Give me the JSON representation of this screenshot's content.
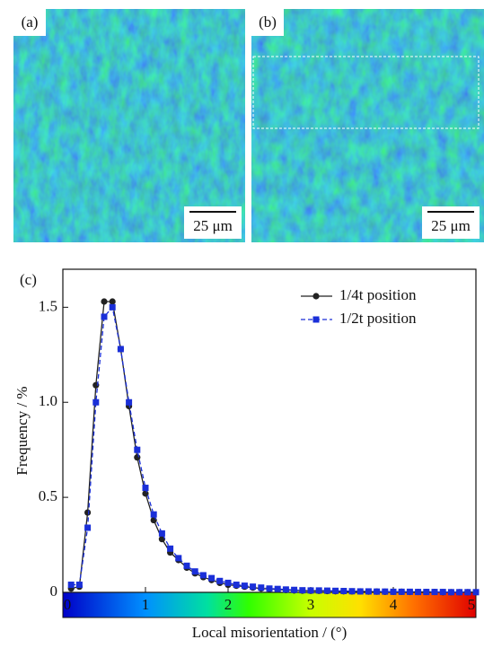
{
  "images": [
    {
      "label": "(a)",
      "scale_bar": "25 μm"
    },
    {
      "label": "(b)",
      "scale_bar": "25 μm"
    }
  ],
  "chart_data": {
    "type": "line",
    "panel_label": "(c)",
    "x_label": "Local misorientation / (°)",
    "y_label": "Frequency / %",
    "x": [
      0.1,
      0.2,
      0.3,
      0.4,
      0.5,
      0.6,
      0.7,
      0.8,
      0.9,
      1.0,
      1.1,
      1.2,
      1.3,
      1.4,
      1.5,
      1.6,
      1.7,
      1.8,
      1.9,
      2.0,
      2.1,
      2.2,
      2.3,
      2.4,
      2.5,
      2.6,
      2.7,
      2.8,
      2.9,
      3.0,
      3.1,
      3.2,
      3.3,
      3.4,
      3.5,
      3.6,
      3.7,
      3.8,
      3.9,
      4.0,
      4.1,
      4.2,
      4.3,
      4.4,
      4.5,
      4.6,
      4.7,
      4.8,
      4.9,
      5.0
    ],
    "series": [
      {
        "name": "1/4t position",
        "color": "#222222",
        "marker": "circle",
        "line_style": "solid",
        "values": [
          0.02,
          0.03,
          0.42,
          1.09,
          1.53,
          1.53,
          1.28,
          0.98,
          0.71,
          0.52,
          0.38,
          0.28,
          0.21,
          0.17,
          0.13,
          0.1,
          0.08,
          0.065,
          0.05,
          0.04,
          0.035,
          0.03,
          0.025,
          0.02,
          0.018,
          0.015,
          0.012,
          0.01,
          0.009,
          0.008,
          0.008,
          0.007,
          0.006,
          0.006,
          0.005,
          0.005,
          0.004,
          0.004,
          0.003,
          0.003,
          0.003,
          0.002,
          0.002,
          0.002,
          0.002,
          0.001,
          0.001,
          0.001,
          0.001,
          0.001
        ]
      },
      {
        "name": "1/2t position",
        "color": "#1a2fd8",
        "marker": "square",
        "line_style": "dashed",
        "values": [
          0.04,
          0.04,
          0.34,
          1.0,
          1.45,
          1.5,
          1.28,
          1.0,
          0.75,
          0.55,
          0.41,
          0.31,
          0.23,
          0.18,
          0.14,
          0.11,
          0.09,
          0.075,
          0.06,
          0.05,
          0.04,
          0.035,
          0.03,
          0.025,
          0.02,
          0.018,
          0.015,
          0.013,
          0.011,
          0.01,
          0.01,
          0.009,
          0.008,
          0.007,
          0.006,
          0.005,
          0.005,
          0.004,
          0.004,
          0.003,
          0.003,
          0.003,
          0.002,
          0.002,
          0.002,
          0.002,
          0.001,
          0.001,
          0.001,
          0.001
        ]
      }
    ],
    "xlim": [
      0,
      5
    ],
    "xticks": [
      0,
      1,
      2,
      3,
      4,
      5
    ],
    "ylim": [
      0,
      1.7
    ],
    "yticks": [
      0,
      0.5,
      {
        "value": 1,
        "label": "1.0"
      },
      1.5
    ],
    "legend": "upper right",
    "colorbar": true
  }
}
